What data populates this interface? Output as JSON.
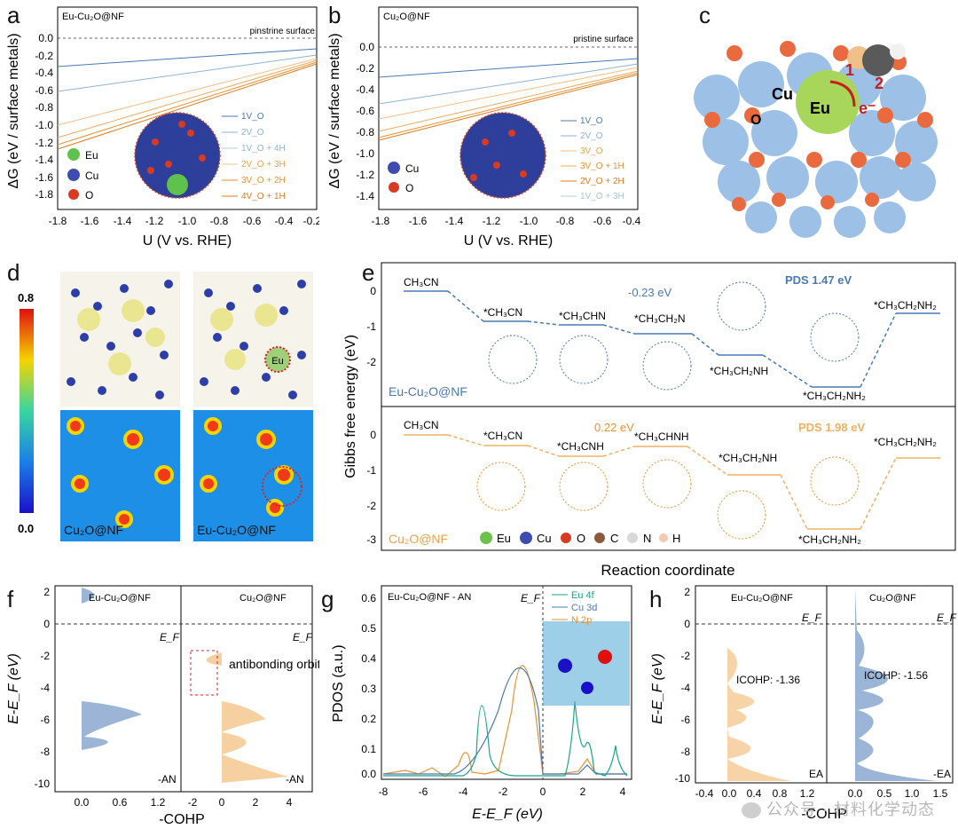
{
  "labels": {
    "a": "a",
    "b": "b",
    "c": "c",
    "d": "d",
    "e": "e",
    "f": "f",
    "g": "g",
    "h": "h"
  },
  "panel_a": {
    "title": "Eu-Cu₂O@NF",
    "ref": "pinstrine surface",
    "ylabel": "ΔG (eV / surface metals)",
    "xlabel": "U (V vs. RHE)",
    "xticks": [
      "-1.8",
      "-1.6",
      "-1.4",
      "-1.2",
      "-1.0",
      "-0.8",
      "-0.6",
      "-0.4",
      "-0.2"
    ],
    "yticks": [
      "0.0",
      "-0.2",
      "-0.4",
      "-0.6",
      "-0.8",
      "-1.0",
      "-1.2",
      "-1.4",
      "-1.6",
      "-1.8"
    ],
    "legend": [
      "1V_O",
      "2V_O",
      "1V_O + 4H",
      "2V_O + 3H",
      "3V_O + 2H",
      "4V_O + 1H"
    ],
    "elements": [
      "Eu",
      "Cu",
      "O"
    ]
  },
  "panel_b": {
    "title": "Cu₂O@NF",
    "ref": "pristine surface",
    "ylabel": "ΔG (eV / surface metals)",
    "xlabel": "U (V vs. RHE)",
    "xticks": [
      "-1.8",
      "-1.6",
      "-1.4",
      "-1.2",
      "-1.0",
      "-0.8",
      "-0.6",
      "-0.4"
    ],
    "yticks": [
      "0.0",
      "-0.2",
      "-0.4",
      "-0.6",
      "-0.8",
      "-1.0",
      "-1.2",
      "-1.4"
    ],
    "legend": [
      "1V_O",
      "2V_O",
      "3V_O",
      "3V_O + 1H",
      "2V_O + 2H",
      "1V_O + 3H"
    ],
    "elements": [
      "Cu",
      "O"
    ]
  },
  "panel_c": {
    "labels": [
      "Cu",
      "O",
      "Eu",
      "e⁻",
      "1",
      "2"
    ]
  },
  "panel_d": {
    "scale_max": "0.8",
    "scale_min": "0.0",
    "map_left": "Cu₂O@NF",
    "map_right": "Eu-Cu₂O@NF",
    "atom": "Eu"
  },
  "panel_e": {
    "ylabel": "Gibbs free energy (eV)",
    "xlabel": "Reaction coordinate",
    "top_label": "Eu-Cu₂O@NF",
    "bottom_label": "Cu₂O@NF",
    "top_pds": "PDS 1.47 eV",
    "bottom_pds": "PDS 1.98 eV",
    "top_delta": "-0.23 eV",
    "bottom_delta": "0.22 eV",
    "states": [
      "CH₃CN",
      "*CH₃CN",
      "*CH₃CHN",
      "*CH₃CH₂N",
      "*CH₃CH₂NH",
      "*CH₃CH₂NH₂",
      "*CH₃CH₂NH₂"
    ],
    "bottom_states": [
      "CH₃CN",
      "*CH₃CN",
      "*CH₃CNH",
      "*CH₃CHNH",
      "*CH₃CH₂NH",
      "*CH₃CH₂NH₂",
      "*CH₃CH₂NH₂"
    ],
    "yticks_top": [
      "0",
      "-1",
      "-2"
    ],
    "yticks_bottom": [
      "0",
      "-1",
      "-2",
      "-3"
    ],
    "legend": [
      "Eu",
      "Cu",
      "O",
      "C",
      "N",
      "H"
    ]
  },
  "panel_f": {
    "left_title": "Eu-Cu₂O@NF",
    "right_title": "Cu₂O@NF",
    "ylabel": "E-E_F (eV)",
    "xlabel": "-COHP",
    "ef": "E_F",
    "tag": "-AN",
    "annotation": "antibonding orbital",
    "yticks": [
      "2",
      "0",
      "-2",
      "-4",
      "-6",
      "-8",
      "-10"
    ],
    "xticks_left": [
      "0.0",
      "0.6",
      "1.2"
    ],
    "xticks_right": [
      "-2",
      "0",
      "2",
      "4"
    ]
  },
  "panel_g": {
    "title": "Eu-Cu₂O@NF - AN",
    "ylabel": "PDOS (a.u.)",
    "xlabel": "E-E_F (eV)",
    "ef": "E_F",
    "legend": [
      "Eu 4f",
      "Cu 3d",
      "N 2p"
    ],
    "xticks": [
      "-8",
      "-6",
      "-4",
      "-2",
      "0",
      "2",
      "4"
    ],
    "yticks": [
      "0.6",
      "0.5",
      "0.4",
      "0.3",
      "0.2",
      "0.1",
      "0.0"
    ]
  },
  "panel_h": {
    "left_title": "Eu-Cu₂O@NF",
    "right_title": "Cu₂O@NF",
    "ylabel": "E-E_F (eV)",
    "xlabel": "-COHP",
    "ef": "E_F",
    "tag": "EA",
    "tag2": "-EA",
    "icohp_left": "ICOHP: -1.36",
    "icohp_right": "ICOHP: -1.56",
    "yticks": [
      "2",
      "0",
      "-2",
      "-4",
      "-6",
      "-8",
      "-10"
    ],
    "xticks_left": [
      "-0.4",
      "0.0",
      "0.4",
      "0.8",
      "1.2"
    ],
    "xticks_right": [
      "0.0",
      "0.5",
      "1.0",
      "1.5"
    ]
  },
  "watermark": "公众号 · 材料化学动态",
  "colors": {
    "blue": "#4a78b4",
    "orange": "#e8922e",
    "green": "#1aa58a",
    "eu": "#6cc24a",
    "cu": "#3c4cb0",
    "o": "#d83a22"
  }
}
